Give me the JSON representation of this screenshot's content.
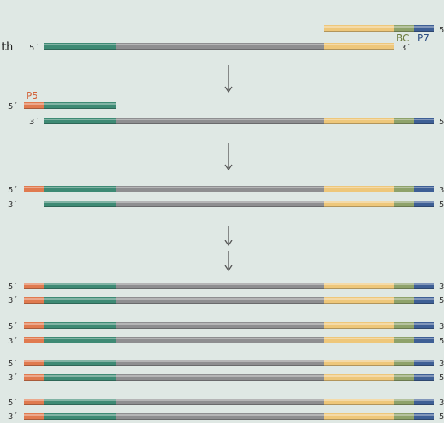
{
  "text": {
    "partial_word": "th",
    "five_prime": "5´",
    "three_prime": "3´",
    "five_prime_edge": "5",
    "three_prime_edge": "3"
  },
  "labels": {
    "bc": "BC",
    "p7": "P7",
    "p5": "P5"
  },
  "colors": {
    "background": "#dfe8e4",
    "p5": "#e07a4f",
    "insert_end": "#3e8a74",
    "insert": "#8e8e90",
    "adapter": "#eec77a",
    "bc": "#8ea26a",
    "p7": "#3e5f95",
    "bc_label": "#6d7d3f",
    "p7_label": "#2e4f84",
    "p5_label": "#d2633a",
    "arrow": "#555555"
  },
  "icons": {
    "step_arrow": "down-arrow-icon"
  }
}
